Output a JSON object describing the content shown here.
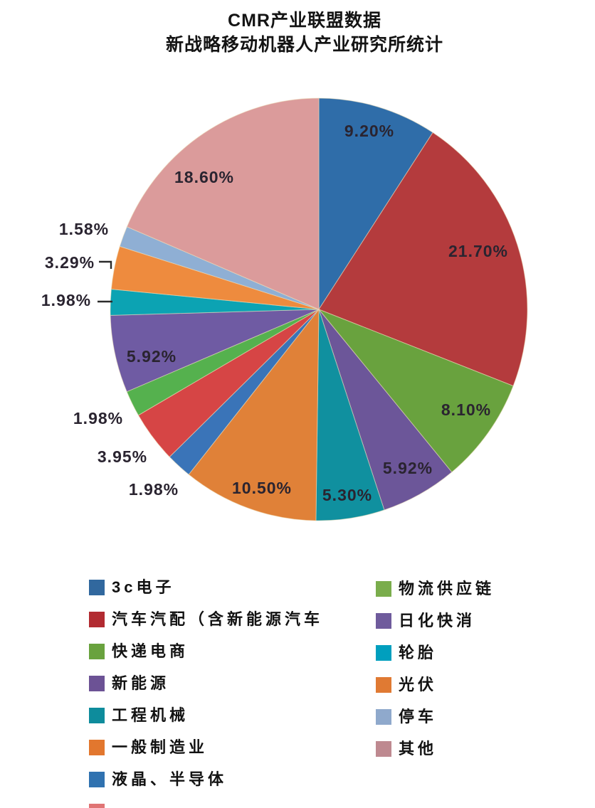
{
  "title": {
    "line1": "CMR产业联盟数据",
    "line2": "新战略移动机器人产业研究所统计"
  },
  "chart_data": {
    "type": "pie",
    "title": "CMR产业联盟数据",
    "subtitle": "新战略移动机器人产业研究所统计",
    "legend_position": "bottom",
    "direction": "clockwise",
    "start_angle_deg": 0,
    "values_unit": "percent",
    "slices": [
      {
        "label": "3c电子",
        "value": 9.2,
        "display": "9.20%",
        "color": "#2F6DA9"
      },
      {
        "label": "汽车汽配（含新能源汽车",
        "value": 21.7,
        "display": "21.70%",
        "color": "#B43B3D"
      },
      {
        "label": "快递电商",
        "value": 8.1,
        "display": "8.10%",
        "color": "#69A23E"
      },
      {
        "label": "新能源",
        "value": 5.92,
        "display": "5.92%",
        "color": "#6C5699"
      },
      {
        "label": "工程机械",
        "value": 5.3,
        "display": "5.30%",
        "color": "#10909F"
      },
      {
        "label": "一般制造业",
        "value": 10.5,
        "display": "10.50%",
        "color": "#E08138"
      },
      {
        "label": "液晶、半导体",
        "value": 1.98,
        "display": "1.98%",
        "color": "#3A74B8"
      },
      {
        "label": "",
        "value": 3.95,
        "display": "3.95%",
        "color": "#D64545"
      },
      {
        "label": "物流供应链",
        "value": 1.98,
        "display": "1.98%",
        "color": "#55B14E"
      },
      {
        "label": "日化快消",
        "value": 5.92,
        "display": "5.92%",
        "color": "#6F5BA3"
      },
      {
        "label": "轮胎",
        "value": 1.98,
        "display": "1.98%",
        "color": "#0CA3B3"
      },
      {
        "label": "光伏",
        "value": 3.29,
        "display": "3.29%",
        "color": "#EE8B3E"
      },
      {
        "label": "停车",
        "value": 1.58,
        "display": "1.58%",
        "color": "#8FAFD4"
      },
      {
        "label": "其他",
        "value": 18.6,
        "display": "18.60%",
        "color": "#DB9B9B"
      }
    ]
  },
  "legend": {
    "columns": [
      {
        "items": [
          {
            "label": "3c电子",
            "color": "#31689E"
          },
          {
            "label": "汽车汽配（含新能源汽车",
            "color": "#B22B31"
          },
          {
            "label": "快递电商",
            "color": "#69A23E"
          },
          {
            "label": "新能源",
            "color": "#6C5295"
          },
          {
            "label": "工程机械",
            "color": "#0E8C9C"
          },
          {
            "label": "一般制造业",
            "color": "#E2772E"
          },
          {
            "label": "液晶、半导体",
            "color": "#3072B0"
          }
        ]
      },
      {
        "items": [
          {
            "label": "物流供应链",
            "color": "#7AAD4C"
          },
          {
            "label": "日化快消",
            "color": "#6F5B9C"
          },
          {
            "label": "轮胎",
            "color": "#009FBE"
          },
          {
            "label": "光伏",
            "color": "#E07A33"
          },
          {
            "label": "停车",
            "color": "#8FA9CC"
          },
          {
            "label": "其他",
            "color": "#BE8990"
          }
        ]
      }
    ],
    "truncated_item": {
      "label": "",
      "color": "#D64545"
    }
  }
}
